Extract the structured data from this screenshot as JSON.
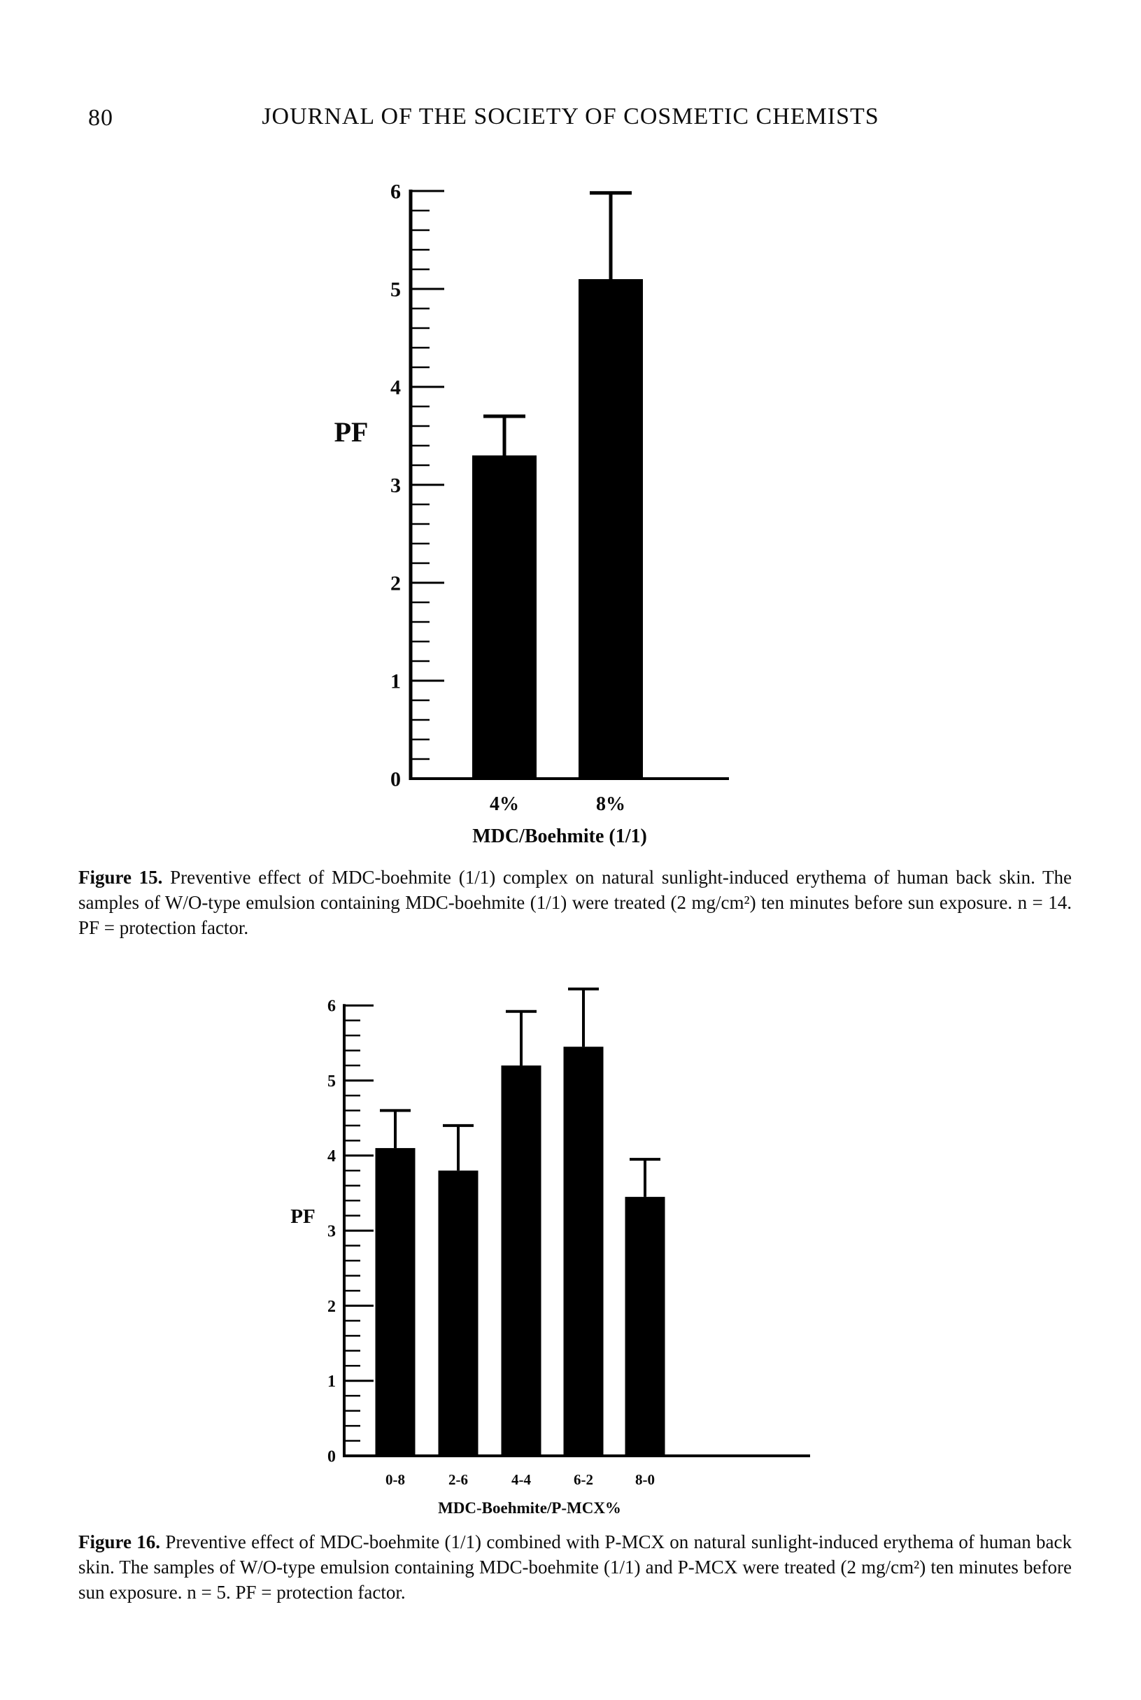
{
  "page": {
    "number": "80",
    "journal_title": "JOURNAL OF THE SOCIETY OF COSMETIC CHEMISTS"
  },
  "figures": {
    "fig15": {
      "caption_label": "Figure 15.",
      "caption_text": "Preventive effect of MDC-boehmite (1/1) complex on natural sunlight-induced erythema of human back skin. The samples of W/O-type emulsion containing MDC-boehmite (1/1) were treated (2 mg/cm²) ten minutes before sun exposure. n = 14. PF = protection factor."
    },
    "fig16": {
      "caption_label": "Figure 16.",
      "caption_text": "Preventive effect of MDC-boehmite (1/1) combined with P-MCX on natural sunlight-induced erythema of human back skin. The samples of W/O-type emulsion containing MDC-boehmite (1/1) and P-MCX were treated (2 mg/cm²) ten minutes before sun exposure. n = 5. PF = protection factor."
    }
  },
  "chart_data": [
    {
      "id": "fig15",
      "type": "bar",
      "title": "",
      "ylabel": "PF",
      "xlabel": "MDC/Boehmite (1/1)",
      "categories": [
        "4%",
        "8%"
      ],
      "values": [
        3.3,
        5.1
      ],
      "errors_plus": [
        0.4,
        0.88
      ],
      "ylim": [
        0,
        6
      ],
      "ytick_major_step": 1,
      "ytick_minor_step": 0.2,
      "grid": false,
      "legend": "none",
      "bar_color": "#000000"
    },
    {
      "id": "fig16",
      "type": "bar",
      "title": "",
      "ylabel": "PF",
      "xlabel": "MDC-Boehmite/P-MCX%",
      "categories": [
        "0-8",
        "2-6",
        "4-4",
        "6-2",
        "8-0"
      ],
      "values": [
        4.1,
        3.8,
        5.2,
        5.45,
        3.45
      ],
      "errors_plus": [
        0.5,
        0.6,
        0.72,
        0.77,
        0.5
      ],
      "ylim": [
        0,
        6
      ],
      "ytick_major_step": 1,
      "ytick_minor_step": 0.2,
      "grid": false,
      "legend": "none",
      "bar_color": "#000000"
    }
  ]
}
